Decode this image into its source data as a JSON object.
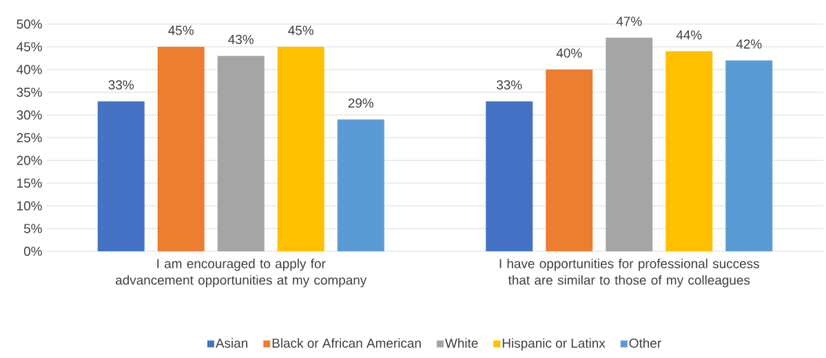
{
  "chart_data": {
    "type": "bar",
    "categories": [
      "I am encouraged to apply for advancement opportunities at my company",
      "I have opportunities for professional success that are similar to those of my colleagues"
    ],
    "series": [
      {
        "name": "Asian",
        "color": "#4472c4",
        "values": [
          33,
          33
        ],
        "value_labels": [
          "33%",
          "33%"
        ]
      },
      {
        "name": "Black or African American",
        "color": "#ed7d31",
        "values": [
          45,
          40
        ],
        "value_labels": [
          "45%",
          "40%"
        ]
      },
      {
        "name": "White",
        "color": "#a5a5a5",
        "values": [
          43,
          47
        ],
        "value_labels": [
          "43%",
          "47%"
        ]
      },
      {
        "name": "Hispanic or Latinx",
        "color": "#ffc000",
        "values": [
          45,
          44
        ],
        "value_labels": [
          "45%",
          "44%"
        ]
      },
      {
        "name": "Other",
        "color": "#5b9bd5",
        "values": [
          29,
          42
        ],
        "value_labels": [
          "29%",
          "42%"
        ]
      }
    ],
    "ylim": [
      0,
      50
    ],
    "yticks": [
      {
        "value": 0,
        "label": "0%"
      },
      {
        "value": 5,
        "label": "5%"
      },
      {
        "value": 10,
        "label": "10%"
      },
      {
        "value": 15,
        "label": "15%"
      },
      {
        "value": 20,
        "label": "20%"
      },
      {
        "value": 25,
        "label": "25%"
      },
      {
        "value": 30,
        "label": "30%"
      },
      {
        "value": 35,
        "label": "35%"
      },
      {
        "value": 40,
        "label": "40%"
      },
      {
        "value": 45,
        "label": "45%"
      },
      {
        "value": 50,
        "label": "50%"
      }
    ],
    "grid": "y",
    "legend": "bottom"
  }
}
